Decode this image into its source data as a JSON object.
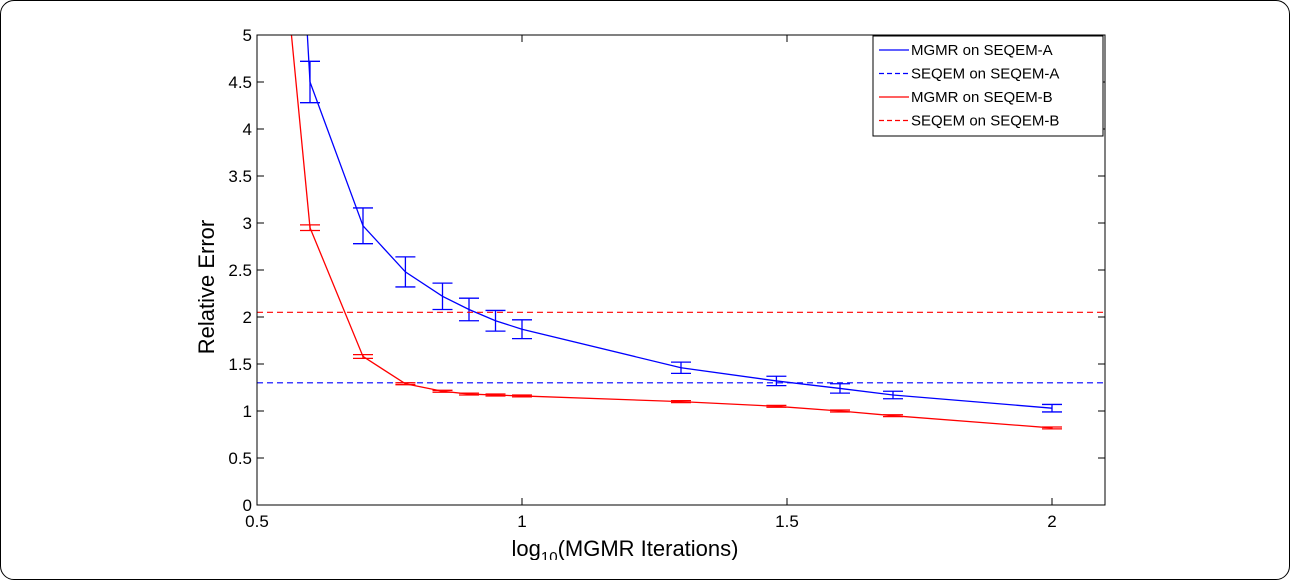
{
  "chart_data": {
    "type": "line",
    "title": "",
    "xlabel": "log",
    "xlabel_subscript": "10",
    "xlabel_suffix": "(MGMR Iterations)",
    "ylabel": "Relative Error",
    "xlim": [
      0.5,
      2.1
    ],
    "ylim": [
      0,
      5
    ],
    "x_ticks": [
      0.5,
      1,
      1.5,
      2
    ],
    "x_tick_labels": [
      "0.5",
      "1",
      "1.5",
      "2"
    ],
    "y_ticks": [
      0,
      0.5,
      1,
      1.5,
      2,
      2.5,
      3,
      3.5,
      4,
      4.5,
      5
    ],
    "y_tick_labels": [
      "0",
      "0.5",
      "1",
      "1.5",
      "2",
      "2.5",
      "3",
      "3.5",
      "4",
      "4.5",
      "5"
    ],
    "grid": false,
    "legend_position": "top-right",
    "series": [
      {
        "name": "MGMR on SEQEM-A",
        "color": "#0000ff",
        "style": "solid",
        "x": [
          0.6,
          0.7,
          0.78,
          0.85,
          0.9,
          0.95,
          1.0,
          1.3,
          1.48,
          1.6,
          1.7,
          2.0
        ],
        "y": [
          4.5,
          2.97,
          2.48,
          2.22,
          2.08,
          1.96,
          1.87,
          1.46,
          1.32,
          1.24,
          1.17,
          1.03
        ],
        "err": [
          0.22,
          0.19,
          0.16,
          0.14,
          0.12,
          0.11,
          0.1,
          0.06,
          0.05,
          0.05,
          0.04,
          0.04
        ],
        "lead_in": {
          "x": 0.595,
          "y": 5.0
        }
      },
      {
        "name": "SEQEM on SEQEM-A",
        "color": "#0000ff",
        "style": "dashed",
        "constant": 1.3
      },
      {
        "name": "MGMR on SEQEM-B",
        "color": "#ff0000",
        "style": "solid",
        "x": [
          0.6,
          0.7,
          0.78,
          0.85,
          0.9,
          0.95,
          1.0,
          1.3,
          1.48,
          1.6,
          1.7,
          2.0
        ],
        "y": [
          2.95,
          1.58,
          1.29,
          1.21,
          1.18,
          1.17,
          1.16,
          1.1,
          1.05,
          1.0,
          0.95,
          0.82
        ],
        "err": [
          0.03,
          0.02,
          0.01,
          0.01,
          0.01,
          0.01,
          0.01,
          0.01,
          0.01,
          0.01,
          0.01,
          0.01
        ],
        "lead_in": {
          "x": 0.565,
          "y": 5.0
        }
      },
      {
        "name": "SEQEM on SEQEM-B",
        "color": "#ff0000",
        "style": "dashed",
        "constant": 2.05
      }
    ]
  }
}
